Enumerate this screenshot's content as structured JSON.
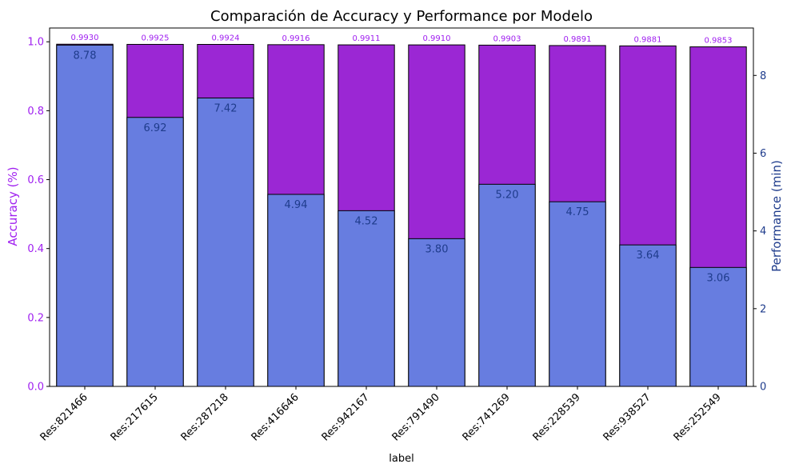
{
  "chart_data": {
    "type": "bar",
    "title": "Comparación de Accuracy y Performance por Modelo",
    "xlabel": "label",
    "ylabel_left": "Accuracy (%)",
    "ylabel_right": "Performance (min)",
    "categories": [
      "Res:821466",
      "Res:217615",
      "Res:287218",
      "Res:416646",
      "Res:942167",
      "Res:791490",
      "Res:741269",
      "Res:228539",
      "Res:938527",
      "Res:252549"
    ],
    "series": [
      {
        "name": "Accuracy",
        "axis": "left",
        "values": [
          0.993,
          0.9925,
          0.9924,
          0.9916,
          0.9911,
          0.991,
          0.9903,
          0.9891,
          0.9881,
          0.9853
        ],
        "labels": [
          "0.9930",
          "0.9925",
          "0.9924",
          "0.9916",
          "0.9911",
          "0.9910",
          "0.9903",
          "0.9891",
          "0.9881",
          "0.9853"
        ],
        "color": "#9b27d4"
      },
      {
        "name": "Performance",
        "axis": "right",
        "values": [
          8.78,
          6.92,
          7.42,
          4.94,
          4.52,
          3.8,
          5.2,
          4.75,
          3.64,
          3.06
        ],
        "labels": [
          "8.78",
          "6.92",
          "7.42",
          "4.94",
          "4.52",
          "3.80",
          "5.20",
          "4.75",
          "3.64",
          "3.06"
        ],
        "color": "#677de0"
      }
    ],
    "ylim_left": [
      0,
      1.04
    ],
    "ylim_right": [
      0,
      9.22
    ],
    "yticks_left": [
      "0.0",
      "0.2",
      "0.4",
      "0.6",
      "0.8",
      "1.0"
    ],
    "yticks_right": [
      "0",
      "2",
      "4",
      "6",
      "8"
    ],
    "left_axis_color": "#a020f0",
    "right_axis_color": "#1f3c8c",
    "grid": false
  }
}
